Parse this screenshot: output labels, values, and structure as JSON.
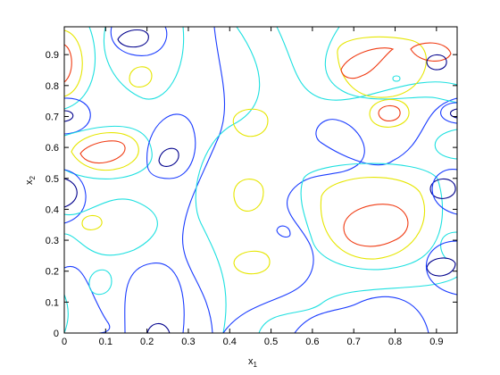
{
  "chart_data": {
    "type": "contour",
    "xlabel": {
      "base": "x",
      "sub": "1"
    },
    "ylabel": {
      "base": "x",
      "sub": "2"
    },
    "xlim": [
      0,
      0.95
    ],
    "ylim": [
      0,
      0.99
    ],
    "xticks": [
      0,
      0.1,
      0.2,
      0.3,
      0.4,
      0.5,
      0.6,
      0.7,
      0.8,
      0.9
    ],
    "yticks": [
      0,
      0.1,
      0.2,
      0.3,
      0.4,
      0.5,
      0.6,
      0.7,
      0.8,
      0.9
    ]
  }
}
